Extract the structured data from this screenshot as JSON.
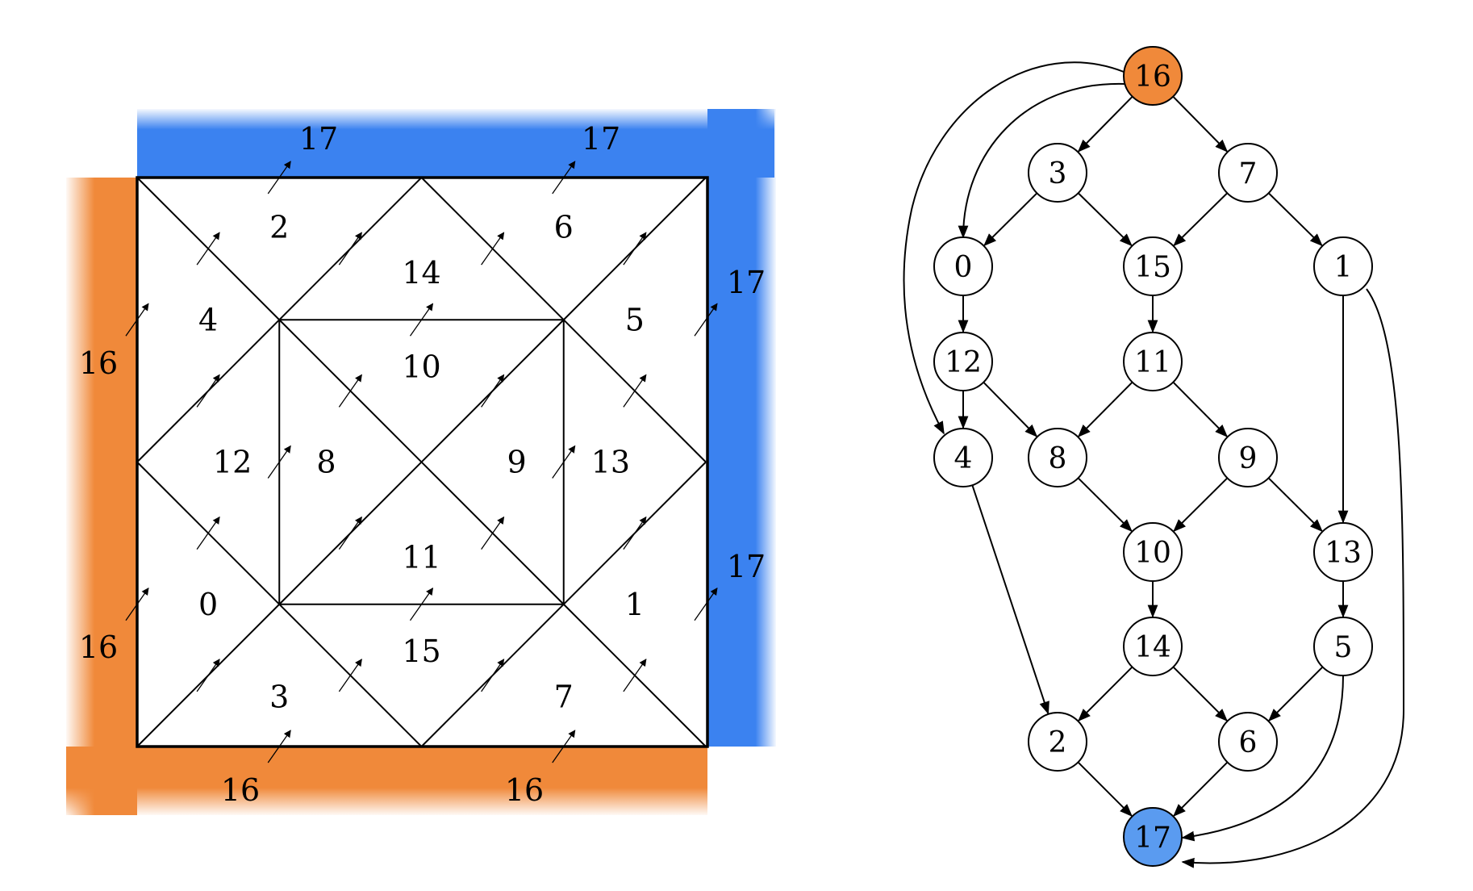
{
  "colors": {
    "source": "#f0893a",
    "sink": "#3b82f0",
    "sink_node": "#5a9bf0",
    "source_node": "#f0893a"
  },
  "mesh": {
    "cells": [
      {
        "id": "c0",
        "label": "0"
      },
      {
        "id": "c1",
        "label": "1"
      },
      {
        "id": "c2",
        "label": "2"
      },
      {
        "id": "c3",
        "label": "3"
      },
      {
        "id": "c4",
        "label": "4"
      },
      {
        "id": "c5",
        "label": "5"
      },
      {
        "id": "c6",
        "label": "6"
      },
      {
        "id": "c7",
        "label": "7"
      },
      {
        "id": "c8",
        "label": "8"
      },
      {
        "id": "c9",
        "label": "9"
      },
      {
        "id": "c10",
        "label": "10"
      },
      {
        "id": "c11",
        "label": "11"
      },
      {
        "id": "c12",
        "label": "12"
      },
      {
        "id": "c13",
        "label": "13"
      },
      {
        "id": "c14",
        "label": "14"
      },
      {
        "id": "c15",
        "label": "15"
      }
    ],
    "boundary_labels": {
      "top_left": "17",
      "top_right": "17",
      "right_top": "17",
      "right_bottom": "17",
      "left_top": "16",
      "left_bottom": "16",
      "bottom_left": "16",
      "bottom_right": "16"
    }
  },
  "graph": {
    "nodes": [
      {
        "id": "n16",
        "label": "16"
      },
      {
        "id": "n3",
        "label": "3"
      },
      {
        "id": "n7",
        "label": "7"
      },
      {
        "id": "n0",
        "label": "0"
      },
      {
        "id": "n15",
        "label": "15"
      },
      {
        "id": "n1",
        "label": "1"
      },
      {
        "id": "n12",
        "label": "12"
      },
      {
        "id": "n11",
        "label": "11"
      },
      {
        "id": "n4",
        "label": "4"
      },
      {
        "id": "n8",
        "label": "8"
      },
      {
        "id": "n9",
        "label": "9"
      },
      {
        "id": "n10",
        "label": "10"
      },
      {
        "id": "n13",
        "label": "13"
      },
      {
        "id": "n14",
        "label": "14"
      },
      {
        "id": "n5",
        "label": "5"
      },
      {
        "id": "n2",
        "label": "2"
      },
      {
        "id": "n6",
        "label": "6"
      },
      {
        "id": "n17",
        "label": "17"
      }
    ],
    "edges": [
      [
        "16",
        "3"
      ],
      [
        "16",
        "7"
      ],
      [
        "16",
        "0"
      ],
      [
        "16",
        "4"
      ],
      [
        "3",
        "0"
      ],
      [
        "3",
        "15"
      ],
      [
        "7",
        "15"
      ],
      [
        "7",
        "1"
      ],
      [
        "0",
        "12"
      ],
      [
        "15",
        "11"
      ],
      [
        "12",
        "4"
      ],
      [
        "12",
        "8"
      ],
      [
        "11",
        "8"
      ],
      [
        "11",
        "9"
      ],
      [
        "8",
        "10"
      ],
      [
        "9",
        "10"
      ],
      [
        "9",
        "13"
      ],
      [
        "1",
        "13"
      ],
      [
        "1",
        "17"
      ],
      [
        "4",
        "2"
      ],
      [
        "10",
        "14"
      ],
      [
        "13",
        "5"
      ],
      [
        "14",
        "2"
      ],
      [
        "14",
        "6"
      ],
      [
        "5",
        "6"
      ],
      [
        "5",
        "17"
      ],
      [
        "2",
        "17"
      ],
      [
        "6",
        "17"
      ]
    ]
  }
}
